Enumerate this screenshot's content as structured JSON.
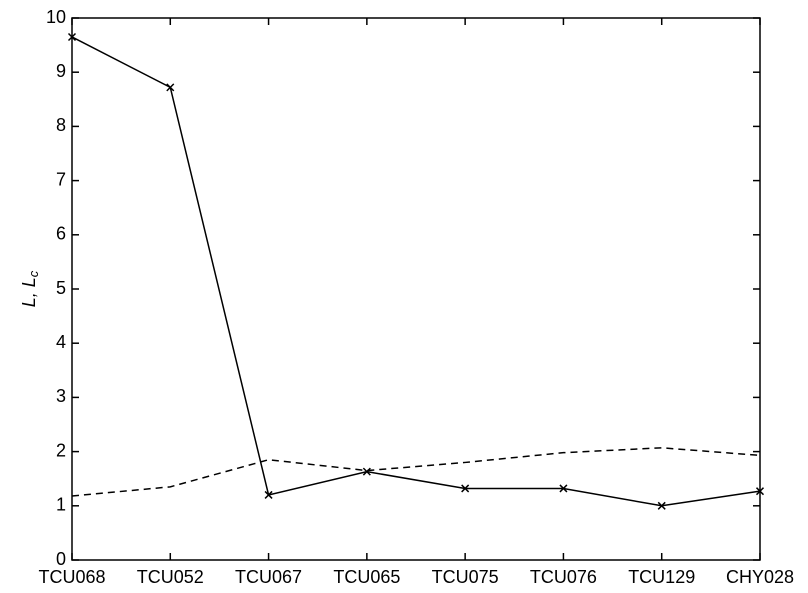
{
  "chart_data": {
    "type": "line",
    "ylabel": {
      "text": "L, L",
      "subscript": "c"
    },
    "categories": [
      "TCU068",
      "TCU052",
      "TCU067",
      "TCU065",
      "TCU075",
      "TCU076",
      "TCU129",
      "CHY028"
    ],
    "series": [
      {
        "color": "#000000",
        "linestyle": "solid",
        "marker": "x",
        "values": [
          9.65,
          8.72,
          1.2,
          1.63,
          1.32,
          1.32,
          1.0,
          1.27
        ]
      },
      {
        "color": "#000000",
        "linestyle": "dashed",
        "marker": "none",
        "values": [
          1.18,
          1.35,
          1.85,
          1.65,
          1.8,
          1.98,
          2.07,
          1.93
        ]
      }
    ],
    "ylim": [
      0,
      10
    ],
    "yticks": [
      0,
      1,
      2,
      3,
      4,
      5,
      6,
      7,
      8,
      9,
      10
    ],
    "grid": false
  }
}
